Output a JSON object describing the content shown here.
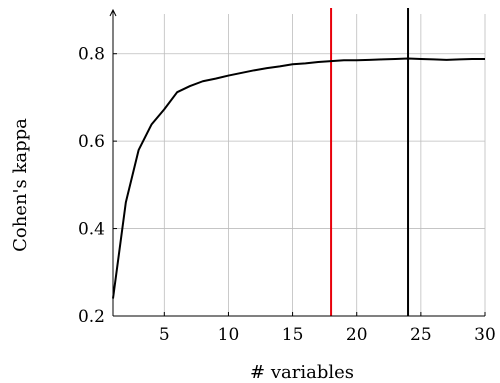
{
  "chart_data": {
    "type": "line",
    "xlabel": "# variables",
    "ylabel": "Cohen's kappa",
    "xlim": [
      1,
      30
    ],
    "ylim": [
      0.2,
      0.9
    ],
    "xticks": [
      5,
      10,
      15,
      20,
      25,
      30
    ],
    "yticks": [
      0.2,
      0.4,
      0.6,
      0.8
    ],
    "grid": true,
    "series": [
      {
        "color": "#000000",
        "x": [
          1,
          2,
          3,
          4,
          5,
          6,
          7,
          8,
          9,
          10,
          11,
          12,
          13,
          14,
          15,
          16,
          17,
          18,
          19,
          20,
          21,
          22,
          23,
          24,
          25,
          26,
          27,
          28,
          29,
          30
        ],
        "y": [
          0.24,
          0.46,
          0.58,
          0.638,
          0.673,
          0.712,
          0.726,
          0.737,
          0.743,
          0.75,
          0.756,
          0.762,
          0.767,
          0.771,
          0.776,
          0.778,
          0.781,
          0.783,
          0.785,
          0.785,
          0.786,
          0.787,
          0.788,
          0.789,
          0.788,
          0.787,
          0.786,
          0.787,
          0.788,
          0.788
        ]
      }
    ],
    "vlines": [
      {
        "x": 18,
        "color": "#e8000b"
      },
      {
        "x": 24,
        "color": "#000000"
      }
    ]
  }
}
